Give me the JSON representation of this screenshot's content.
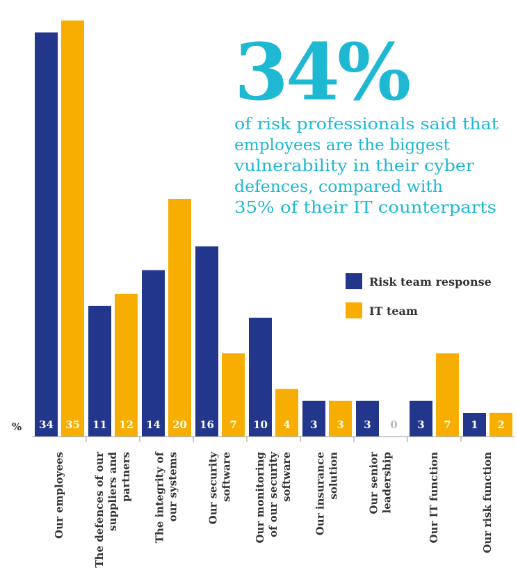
{
  "headline": {
    "big_number": "34%",
    "lines": [
      "of risk professionals said that",
      "employees are the biggest",
      "vulnerability in their cyber",
      "defences, compared with",
      "35% of their IT counterparts"
    ]
  },
  "colors": {
    "risk": "#22368c",
    "it": "#f8ae00",
    "accent": "#1fb8d2",
    "text": "#333333",
    "zero_label": "#bbbbbb",
    "axis": "#9a9a9a"
  },
  "chart_data": {
    "type": "bar",
    "unit_label": "%",
    "categories": [
      [
        "Our employees"
      ],
      [
        "The defences of our",
        "suppliers and",
        "partners"
      ],
      [
        "The integrity of",
        "our systems"
      ],
      [
        "Our security",
        "software"
      ],
      [
        "Our monitoring",
        "of our security",
        "software"
      ],
      [
        "Our insurance",
        "solution"
      ],
      [
        "Our senior",
        "leadership"
      ],
      [
        "Our IT function"
      ],
      [
        "Our risk function"
      ]
    ],
    "series": [
      {
        "name": "Risk team response",
        "color": "#22368c",
        "values": [
          34,
          11,
          14,
          16,
          10,
          3,
          3,
          3,
          1
        ]
      },
      {
        "name": "IT team",
        "color": "#f8ae00",
        "values": [
          35,
          12,
          20,
          7,
          4,
          3,
          0,
          7,
          2
        ]
      }
    ],
    "ylim": [
      0,
      35
    ],
    "grid": false,
    "legend_position": "right"
  }
}
